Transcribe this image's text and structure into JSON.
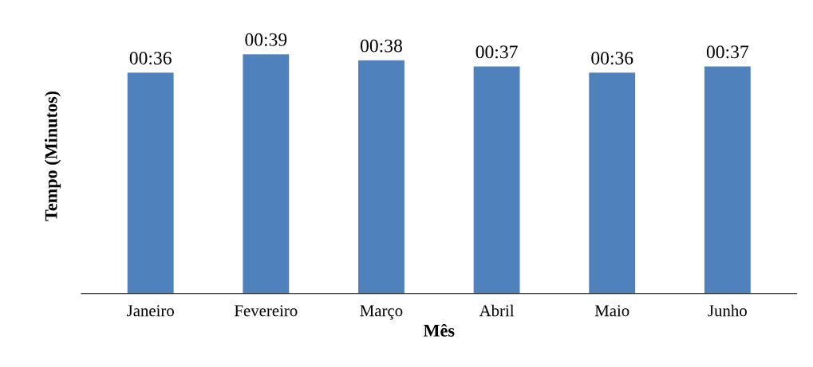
{
  "chart_data": {
    "type": "bar",
    "xlabel": "Mês",
    "ylabel": "Tempo (Minutos)",
    "tick_labels": "x",
    "color": "#4f81bd",
    "categories": [
      "Janeiro",
      "Fevereiro",
      "Março",
      "Abril",
      "Maio",
      "Junho"
    ],
    "values": [
      36,
      39,
      38,
      37,
      36,
      37
    ],
    "value_labels": [
      "00:36",
      "00:39",
      "00:38",
      "00:37",
      "00:36",
      "00:37"
    ]
  }
}
